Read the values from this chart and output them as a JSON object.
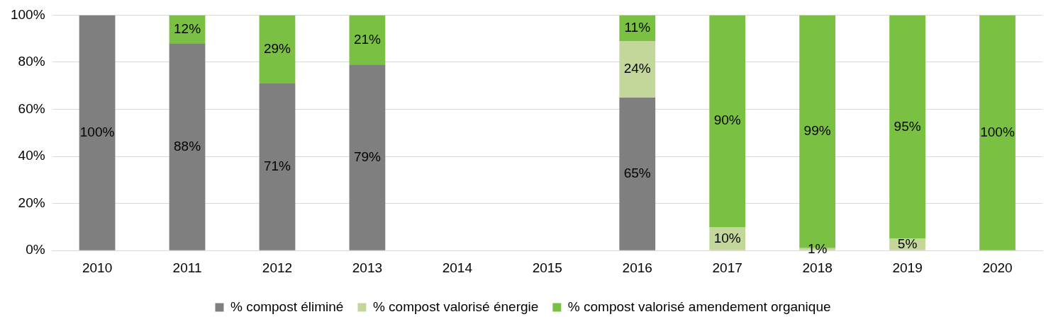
{
  "chart_data": {
    "type": "bar",
    "stacked": true,
    "categories": [
      "2010",
      "2011",
      "2012",
      "2013",
      "2014",
      "2015",
      "2016",
      "2017",
      "2018",
      "2019",
      "2020"
    ],
    "series": [
      {
        "name": "% compost éliminé",
        "color": "#7f7f7f",
        "values": [
          100,
          88,
          71,
          79,
          null,
          null,
          65,
          null,
          null,
          null,
          null
        ],
        "value_labels": [
          "100%",
          "88%",
          "71%",
          "79%",
          null,
          null,
          "65%",
          null,
          null,
          null,
          null
        ]
      },
      {
        "name": "% compost valorisé énergie",
        "color": "#c4d79b",
        "values": [
          null,
          null,
          null,
          null,
          null,
          null,
          24,
          10,
          1,
          5,
          null
        ],
        "value_labels": [
          null,
          null,
          null,
          null,
          null,
          null,
          "24%",
          "10%",
          "1%",
          "5%",
          null
        ]
      },
      {
        "name": "% compost valorisé amendement organique",
        "color": "#7ac143",
        "values": [
          null,
          12,
          29,
          21,
          null,
          null,
          11,
          90,
          99,
          95,
          100
        ],
        "value_labels": [
          null,
          "12%",
          "29%",
          "21%",
          null,
          null,
          "11%",
          "90%",
          "99%",
          "95%",
          "100%"
        ]
      }
    ],
    "ylim": [
      0,
      100
    ],
    "yticks": [
      {
        "value": 0,
        "label": "0%"
      },
      {
        "value": 20,
        "label": "20%"
      },
      {
        "value": 40,
        "label": "40%"
      },
      {
        "value": 60,
        "label": "60%"
      },
      {
        "value": 80,
        "label": "80%"
      },
      {
        "value": 100,
        "label": "100%"
      }
    ],
    "grid": "y",
    "legend": "bottom"
  }
}
